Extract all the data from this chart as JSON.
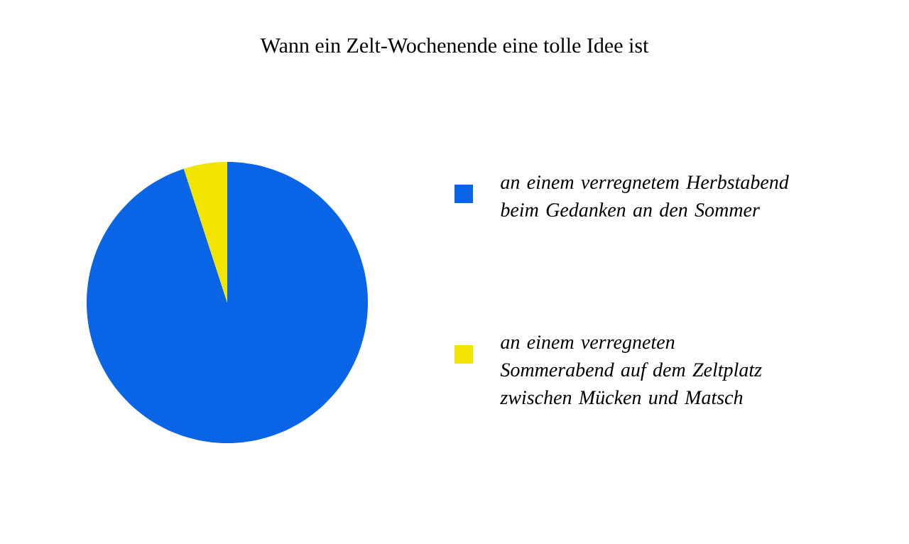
{
  "chart_data": {
    "type": "pie",
    "title": "Wann ein Zelt-Wochenende eine tolle Idee ist",
    "categories": [
      "an einem verregnetem Herbstabend beim Gedanken an den Sommer",
      "an einem verregneten Sommerabend auf dem Zeltplatz zwischen Mücken und Matsch"
    ],
    "values": [
      95,
      5
    ],
    "colors": [
      "#0a64e6",
      "#f0e400"
    ],
    "legend": "right"
  }
}
